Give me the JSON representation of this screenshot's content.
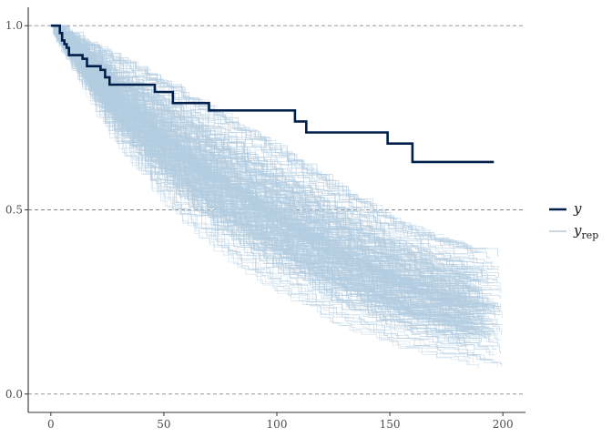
{
  "chart_data": {
    "type": "line",
    "title": "",
    "xlabel": "",
    "ylabel": "",
    "xlim": [
      -10,
      210
    ],
    "ylim": [
      -0.05,
      1.05
    ],
    "x_ticks": [
      0,
      50,
      100,
      150,
      200
    ],
    "x_tick_labels": [
      "0",
      "50",
      "100",
      "150",
      "200"
    ],
    "y_ticks": [
      0.0,
      0.5,
      1.0
    ],
    "y_tick_labels": [
      "0.0",
      "0.5",
      "1.0"
    ],
    "reference_lines_y": [
      0.0,
      0.5,
      1.0
    ],
    "grid": false,
    "legend_position": "right",
    "legend": [
      {
        "label": "y",
        "subscript": ""
      },
      {
        "label": "y",
        "subscript": "rep"
      }
    ],
    "series": [
      {
        "name": "y",
        "color": "#011f4b",
        "step": true,
        "x": [
          0,
          3,
          4,
          5,
          6,
          7,
          8,
          12,
          14,
          16,
          22,
          24,
          26,
          46,
          54,
          70,
          108,
          113,
          149,
          160,
          196
        ],
        "y": [
          1.0,
          1.0,
          0.98,
          0.96,
          0.95,
          0.94,
          0.92,
          0.92,
          0.91,
          0.89,
          0.88,
          0.86,
          0.84,
          0.82,
          0.79,
          0.77,
          0.74,
          0.71,
          0.68,
          0.63,
          0.63
        ]
      },
      {
        "name": "y_rep",
        "color": "#b3cde0",
        "step": true,
        "description_count": 400,
        "median_curve": {
          "x": [
            0,
            25,
            50,
            75,
            100,
            125,
            150,
            175,
            200
          ],
          "y": [
            1.0,
            0.84,
            0.7,
            0.59,
            0.48,
            0.39,
            0.32,
            0.26,
            0.23
          ]
        },
        "band_low": {
          "x": [
            0,
            25,
            50,
            75,
            100,
            125,
            150,
            175,
            200
          ],
          "y": [
            0.99,
            0.71,
            0.52,
            0.38,
            0.28,
            0.2,
            0.14,
            0.1,
            0.06
          ]
        },
        "band_high": {
          "x": [
            0,
            25,
            50,
            75,
            100,
            125,
            150,
            175,
            200
          ],
          "y": [
            1.0,
            0.92,
            0.84,
            0.75,
            0.66,
            0.56,
            0.47,
            0.41,
            0.38
          ]
        }
      }
    ]
  }
}
